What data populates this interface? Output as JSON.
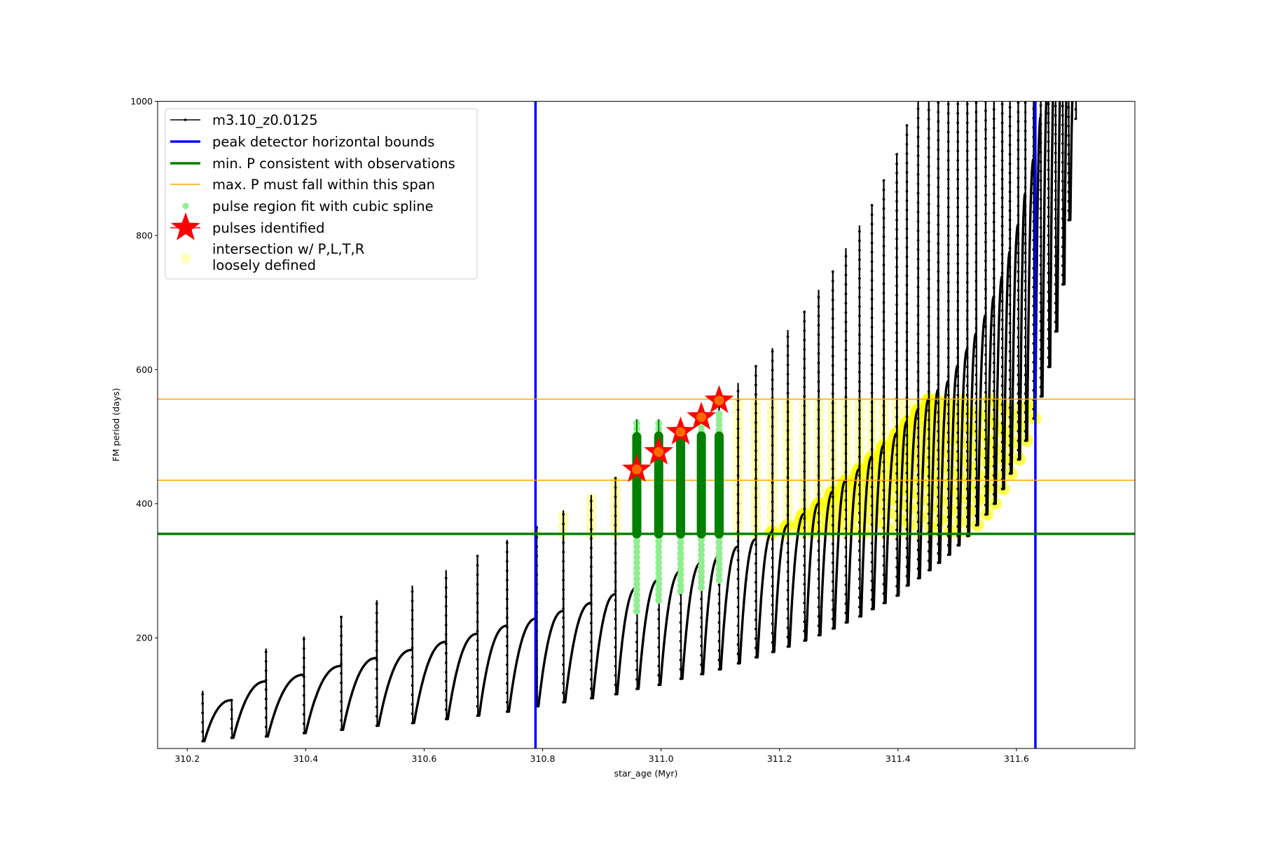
{
  "chart_data": {
    "type": "line",
    "title": "",
    "xlabel": "star_age (Myr)",
    "ylabel": "FM period (days)",
    "xlim": [
      310.15,
      311.8
    ],
    "ylim": [
      35,
      1000
    ],
    "xticks": [
      "310.2",
      "310.4",
      "310.6",
      "310.8",
      "311.0",
      "311.2",
      "311.4",
      "311.6"
    ],
    "yticks": [
      "200",
      "400",
      "600",
      "800",
      "1000"
    ],
    "grid": false,
    "legend_position": "upper-left",
    "legend": [
      {
        "label": "m3.10_z0.0125",
        "kind": "line-marker",
        "color": "#000000"
      },
      {
        "label": "peak detector horizontal bounds",
        "kind": "thick-line",
        "color": "#0000ff"
      },
      {
        "label": "min. P consistent with observations",
        "kind": "thick-line",
        "color": "#008000"
      },
      {
        "label": "max. P must fall within this span",
        "kind": "thin-line",
        "color": "#ffa500"
      },
      {
        "label": "pulse region fit with cubic spline",
        "kind": "dot",
        "color": "#90ee90"
      },
      {
        "label": "pulses identified",
        "kind": "star",
        "color": "#ff0000"
      },
      {
        "label": "intersection w/ P,L,T,R",
        "label2": "loosely defined",
        "kind": "circle",
        "color": "#ffff99"
      }
    ],
    "series": [
      {
        "name": "m3.10_z0.0125",
        "color": "#000000",
        "columns": [
          "pulse_age_Myr",
          "P_before_pulse",
          "P_pulse_peak",
          "P_post_pulse_min"
        ],
        "pulses": [
          [
            310.226,
            100,
            121,
            46
          ],
          [
            310.275,
            107,
            107,
            51
          ],
          [
            310.333,
            135,
            184,
            53
          ],
          [
            310.397,
            145,
            202,
            58
          ],
          [
            310.46,
            158,
            231,
            63
          ],
          [
            310.52,
            170,
            256,
            69
          ],
          [
            310.58,
            182,
            278,
            73
          ],
          [
            310.637,
            194,
            301,
            79
          ],
          [
            310.69,
            206,
            323,
            84
          ],
          [
            310.74,
            218,
            346,
            90
          ],
          [
            310.79,
            229,
            367,
            98
          ],
          [
            310.835,
            240,
            390,
            104
          ],
          [
            310.882,
            252,
            413,
            110
          ],
          [
            310.923,
            265,
            440,
            116
          ],
          [
            310.959,
            275,
            526,
            124
          ],
          [
            310.996,
            287,
            526,
            130
          ],
          [
            311.033,
            299,
            505,
            139
          ],
          [
            311.068,
            312,
            525,
            146
          ],
          [
            311.098,
            322,
            550,
            153
          ],
          [
            311.13,
            336,
            580,
            162
          ],
          [
            311.16,
            347,
            606,
            171
          ],
          [
            311.188,
            358,
            632,
            179
          ],
          [
            311.214,
            368,
            659,
            187
          ],
          [
            311.242,
            385,
            687,
            196
          ],
          [
            311.266,
            400,
            719,
            204
          ],
          [
            311.29,
            418,
            748,
            214
          ],
          [
            311.312,
            435,
            781,
            223
          ],
          [
            311.335,
            452,
            815,
            232
          ],
          [
            311.356,
            470,
            846,
            243
          ],
          [
            311.376,
            487,
            883,
            252
          ],
          [
            311.398,
            505,
            922,
            263
          ],
          [
            311.415,
            522,
            965,
            278
          ],
          [
            311.434,
            540,
            1100,
            289
          ],
          [
            311.452,
            556,
            1100,
            301
          ],
          [
            311.468,
            570,
            1100,
            312
          ],
          [
            311.485,
            583,
            1100,
            324
          ],
          [
            311.501,
            606,
            1100,
            338
          ],
          [
            311.517,
            630,
            1100,
            352
          ],
          [
            311.532,
            654,
            1100,
            368
          ],
          [
            311.548,
            681,
            1100,
            384
          ],
          [
            311.562,
            709,
            1100,
            400
          ],
          [
            311.576,
            739,
            1100,
            422
          ],
          [
            311.589,
            776,
            1100,
            445
          ],
          [
            311.603,
            816,
            1100,
            466
          ],
          [
            311.615,
            863,
            1100,
            494
          ],
          [
            311.629,
            914,
            1100,
            527
          ],
          [
            311.641,
            977,
            1100,
            560
          ],
          [
            311.654,
            1050,
            1100,
            604
          ],
          [
            311.666,
            1100,
            1100,
            657
          ],
          [
            311.678,
            1100,
            1100,
            727
          ],
          [
            311.688,
            1100,
            1100,
            823
          ],
          [
            311.7,
            1100,
            1100,
            974
          ]
        ]
      }
    ],
    "peak_detector_bounds": {
      "color": "#0000ff",
      "x": [
        310.788,
        311.632
      ]
    },
    "min_P_observed": {
      "color": "#008000",
      "y": 355
    },
    "max_P_span": {
      "color": "#ffa500",
      "y": [
        435,
        556
      ]
    },
    "spline_fit_regions": {
      "color_fit": "#90ee90",
      "color_core": "#008000",
      "regions": [
        {
          "age": 310.959,
          "low": 240,
          "high": 526,
          "core_top": 500
        },
        {
          "age": 310.996,
          "low": 256,
          "high": 526,
          "core_top": 501
        },
        {
          "age": 311.033,
          "low": 270,
          "high": 505,
          "core_top": 501
        },
        {
          "age": 311.068,
          "low": 275,
          "high": 515,
          "core_top": 501
        },
        {
          "age": 311.098,
          "low": 286,
          "high": 541,
          "core_top": 501
        }
      ]
    },
    "pulses_identified": {
      "color": "#ff0000",
      "points": [
        {
          "age": 310.959,
          "P": 451
        },
        {
          "age": 310.996,
          "P": 477
        },
        {
          "age": 311.033,
          "P": 507
        },
        {
          "age": 311.068,
          "P": 529
        },
        {
          "age": 311.098,
          "P": 554
        }
      ]
    },
    "intersection": {
      "color": "#ffff00",
      "P_range": [
        355,
        556
      ]
    }
  }
}
